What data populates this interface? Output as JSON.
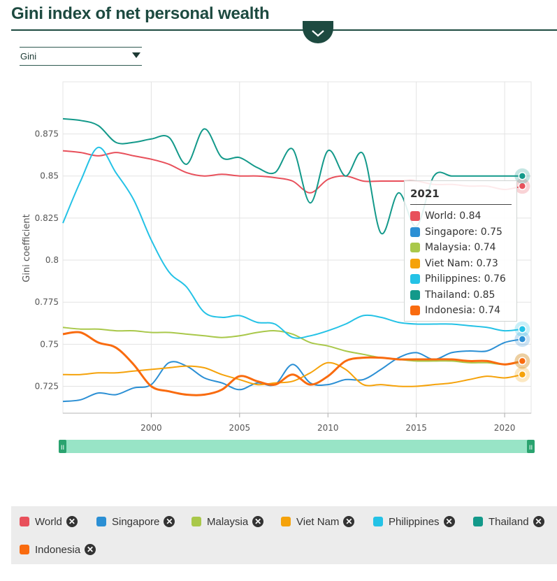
{
  "header": {
    "title": "Gini index of net personal wealth"
  },
  "selector": {
    "value": "Gini"
  },
  "chart_data": {
    "type": "line",
    "title": "",
    "xlabel": "",
    "ylabel": "Gini coefficient",
    "xlim": [
      1995,
      2021.5
    ],
    "ylim": [
      0.709,
      0.906
    ],
    "xticks": [
      2000,
      2005,
      2010,
      2015,
      2020
    ],
    "yticks": [
      0.725,
      0.75,
      0.775,
      0.8,
      0.825,
      0.85,
      0.875
    ],
    "ytick_labels": [
      "0.725",
      "0.75",
      "0.775",
      "0.8",
      "0.825",
      "0.85",
      "0.875"
    ],
    "grid": true,
    "x": [
      1995,
      1996,
      1997,
      1998,
      1999,
      2000,
      2001,
      2002,
      2003,
      2004,
      2005,
      2006,
      2007,
      2008,
      2009,
      2010,
      2011,
      2012,
      2013,
      2014,
      2015,
      2016,
      2017,
      2018,
      2019,
      2020,
      2021
    ],
    "series": [
      {
        "name": "World",
        "color": "#e8505b",
        "values": [
          0.865,
          0.864,
          0.862,
          0.864,
          0.862,
          0.86,
          0.857,
          0.852,
          0.85,
          0.851,
          0.85,
          0.85,
          0.849,
          0.847,
          0.84,
          0.848,
          0.85,
          0.847,
          0.847,
          0.847,
          0.847,
          0.845,
          0.845,
          0.844,
          0.844,
          0.842,
          0.844
        ]
      },
      {
        "name": "Singapore",
        "color": "#2b8fd4",
        "values": [
          0.716,
          0.717,
          0.721,
          0.72,
          0.724,
          0.726,
          0.739,
          0.737,
          0.73,
          0.727,
          0.723,
          0.727,
          0.726,
          0.738,
          0.727,
          0.726,
          0.729,
          0.729,
          0.735,
          0.742,
          0.745,
          0.741,
          0.745,
          0.746,
          0.746,
          0.751,
          0.753
        ]
      },
      {
        "name": "Malaysia",
        "color": "#a9c84a",
        "values": [
          0.76,
          0.759,
          0.759,
          0.758,
          0.758,
          0.757,
          0.757,
          0.756,
          0.755,
          0.754,
          0.755,
          0.757,
          0.758,
          0.756,
          0.751,
          0.749,
          0.746,
          0.744,
          0.742,
          0.741,
          0.74,
          0.74,
          0.74,
          0.739,
          0.739,
          0.738,
          0.74
        ]
      },
      {
        "name": "Viet Nam",
        "color": "#f5a20a",
        "values": [
          0.732,
          0.732,
          0.733,
          0.733,
          0.734,
          0.735,
          0.736,
          0.737,
          0.736,
          0.732,
          0.729,
          0.726,
          0.727,
          0.728,
          0.733,
          0.739,
          0.735,
          0.726,
          0.726,
          0.725,
          0.725,
          0.726,
          0.727,
          0.729,
          0.731,
          0.73,
          0.732
        ]
      },
      {
        "name": "Philippines",
        "color": "#24c2e6",
        "values": [
          0.822,
          0.847,
          0.867,
          0.852,
          0.836,
          0.812,
          0.793,
          0.784,
          0.769,
          0.766,
          0.767,
          0.763,
          0.762,
          0.754,
          0.755,
          0.758,
          0.762,
          0.767,
          0.766,
          0.763,
          0.762,
          0.762,
          0.762,
          0.761,
          0.76,
          0.758,
          0.759
        ]
      },
      {
        "name": "Thailand",
        "color": "#13998a",
        "values": [
          0.884,
          0.883,
          0.88,
          0.87,
          0.87,
          0.872,
          0.873,
          0.857,
          0.878,
          0.861,
          0.861,
          0.855,
          0.852,
          0.866,
          0.834,
          0.865,
          0.85,
          0.863,
          0.816,
          0.84,
          0.82,
          0.85,
          0.85,
          0.85,
          0.85,
          0.85,
          0.85
        ]
      },
      {
        "name": "Indonesia",
        "color": "#f96b0f",
        "values": [
          0.756,
          0.757,
          0.751,
          0.748,
          0.738,
          0.725,
          0.722,
          0.72,
          0.72,
          0.723,
          0.731,
          0.728,
          0.726,
          0.732,
          0.726,
          0.731,
          0.74,
          0.742,
          0.742,
          0.741,
          0.741,
          0.741,
          0.741,
          0.74,
          0.74,
          0.738,
          0.74
        ]
      }
    ]
  },
  "navigator": {
    "handle_left": "II",
    "handle_right": "II"
  },
  "tooltip": {
    "year": "2021",
    "rows": [
      {
        "label": "World: 0.84",
        "color": "#e8505b"
      },
      {
        "label": "Singapore: 0.75",
        "color": "#2b8fd4"
      },
      {
        "label": "Malaysia: 0.74",
        "color": "#a9c84a"
      },
      {
        "label": "Viet Nam: 0.73",
        "color": "#f5a20a"
      },
      {
        "label": "Philippines: 0.76",
        "color": "#24c2e6"
      },
      {
        "label": "Thailand: 0.85",
        "color": "#13998a"
      },
      {
        "label": "Indonesia: 0.74",
        "color": "#f96b0f"
      }
    ]
  },
  "legend": {
    "remove_icon": "close-circle-icon",
    "items": [
      {
        "label": "World",
        "color": "#e8505b"
      },
      {
        "label": "Singapore",
        "color": "#2b8fd4"
      },
      {
        "label": "Malaysia",
        "color": "#a9c84a"
      },
      {
        "label": "Viet Nam",
        "color": "#f5a20a"
      },
      {
        "label": "Philippines",
        "color": "#24c2e6"
      },
      {
        "label": "Thailand",
        "color": "#13998a"
      },
      {
        "label": "Indonesia",
        "color": "#f96b0f"
      }
    ]
  }
}
